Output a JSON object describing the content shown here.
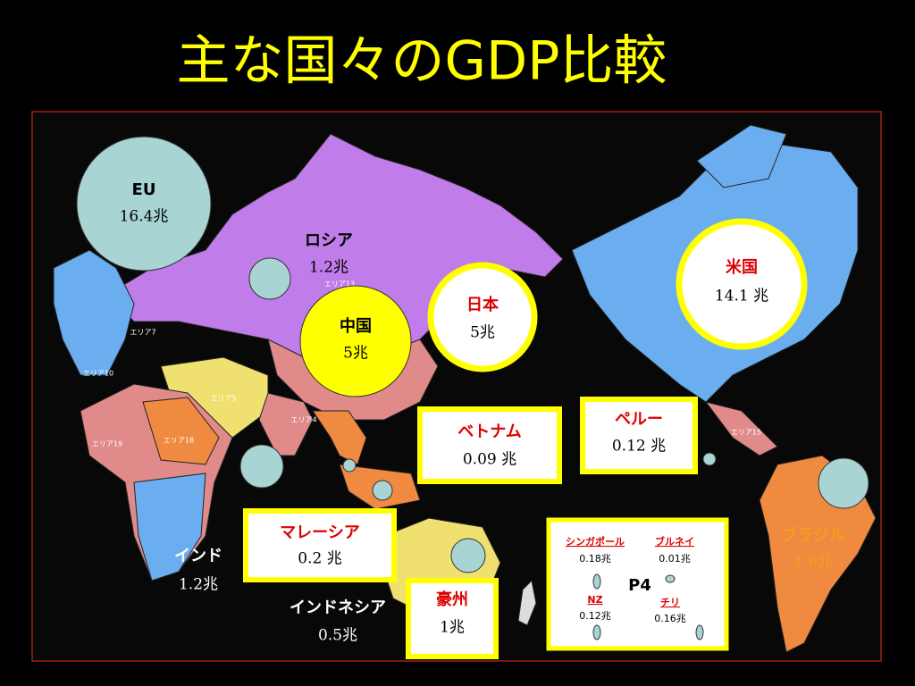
{
  "title": "主な国々のGDP比較",
  "labels": [
    {
      "name": "EU",
      "value": "16.4兆"
    },
    {
      "name": "ロシア",
      "value": "1.2兆"
    },
    {
      "name": "中国",
      "value": "5兆"
    },
    {
      "name": "日本",
      "value": "5兆"
    },
    {
      "name": "米国",
      "value": "14.1 兆"
    },
    {
      "name": "ベトナム",
      "value": "0.09 兆"
    },
    {
      "name": "ペルー",
      "value": "0.12 兆"
    },
    {
      "name": "マレーシア",
      "value": "0.2 兆"
    },
    {
      "name": "豪州",
      "value": "1兆"
    },
    {
      "name": "インド",
      "value": "1.2兆"
    },
    {
      "name": "インドネシア",
      "value": "0.5兆"
    },
    {
      "name": "ブラジル",
      "value": "1.6兆"
    }
  ],
  "p4": {
    "title": "P4",
    "members": [
      {
        "name": "シンガポール",
        "value": "0.18兆"
      },
      {
        "name": "ブルネイ",
        "value": "0.01兆"
      },
      {
        "name": "NZ",
        "value": "0.12兆"
      },
      {
        "name": "チリ",
        "value": "0.16兆"
      }
    ]
  },
  "map_areas": [
    "エリア13",
    "エリア7",
    "エリア10",
    "エリア5",
    "エリア2",
    "エリア4",
    "エリア19",
    "エリア18",
    "エリア15"
  ]
}
